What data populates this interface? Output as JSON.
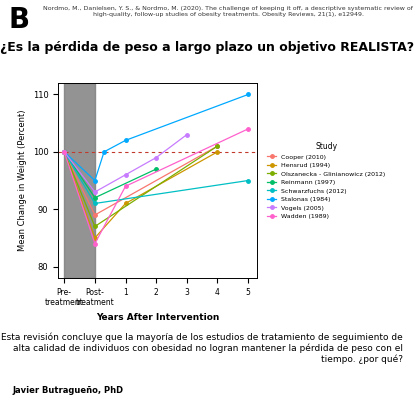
{
  "chart_data": {
    "type": "line",
    "title": "¿Es la pérdida de peso a largo plazo un objetivo REALISTA?",
    "subtitle": "Nordmo, M., Danielsen, Y. S., & Nordmo, M. (2020). The challenge of keeping it off, a descriptive systematic review of high-quality, follow-up studies of obesity treatments. Obesity Reviews, 21(1), e12949.",
    "annotations": [
      "B",
      "Esta revisión concluye que la mayoría de los estudios de tratamiento de seguimiento de alta calidad de individuos con obesidad no logran mantener la pérdida de peso con el tiempo. ¿por qué?",
      "Javier Butragueño, PhD"
    ],
    "x_label": "Years After Intervention",
    "y_label": "Mean Change in Weight (Percent)",
    "legend_title": "Study",
    "legend": "right",
    "marker": "o",
    "line_style": "solid",
    "reference_line": 100,
    "xlim": [
      -1.2,
      5.3
    ],
    "xticks": [
      {
        "value": -1,
        "label": "Pre-\ntreatment"
      },
      {
        "value": 0,
        "label": "Post-\ntreatment"
      },
      1,
      2,
      3,
      4,
      5
    ],
    "ylim": [
      78,
      112
    ],
    "yticks": [
      80,
      90,
      100,
      110
    ],
    "grid": false,
    "series": [
      {
        "name": "Cooper (2010)",
        "color": "#F8766D",
        "x": [
          -1,
          0,
          4
        ],
        "values": [
          100,
          89,
          101
        ]
      },
      {
        "name": "Hensrud (1994)",
        "color": "#CD9600",
        "x": [
          -1,
          0,
          1,
          4
        ],
        "values": [
          100,
          85,
          91,
          100
        ]
      },
      {
        "name": "Olszanecka - Glinianowicz (2012)",
        "color": "#7CAE00",
        "x": [
          -1,
          0,
          4
        ],
        "values": [
          100,
          87,
          101
        ]
      },
      {
        "name": "Reinmann (1997)",
        "color": "#00BE67",
        "x": [
          -1,
          0,
          2
        ],
        "values": [
          100,
          92,
          97
        ]
      },
      {
        "name": "Schwarzfuchs (2012)",
        "color": "#00BFC4",
        "x": [
          -1,
          0,
          5
        ],
        "values": [
          100,
          91,
          95
        ]
      },
      {
        "name": "Stalonas (1984)",
        "color": "#00A9FF",
        "x": [
          -1,
          0,
          0.3,
          1,
          5
        ],
        "values": [
          100,
          95,
          100,
          102,
          110
        ]
      },
      {
        "name": "Vogels (2005)",
        "color": "#C77CFF",
        "x": [
          -1,
          0,
          1,
          2,
          3
        ],
        "values": [
          100,
          93,
          96,
          99,
          103
        ]
      },
      {
        "name": "Wadden (1989)",
        "color": "#FF61CC",
        "x": [
          -1,
          0,
          1,
          5
        ],
        "values": [
          100,
          84,
          94,
          104
        ]
      }
    ]
  }
}
